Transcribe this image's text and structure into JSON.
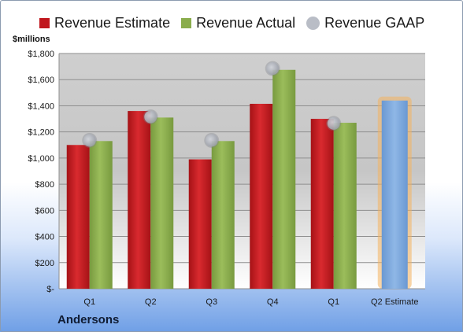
{
  "legend": {
    "estimate": "Revenue Estimate",
    "actual": "Revenue Actual",
    "gaap": "Revenue GAAP"
  },
  "units_label": "$millions",
  "company": "Andersons",
  "colors": {
    "estimate": "#c0171d",
    "actual": "#8aad4c",
    "gaap": "#b3b7c0",
    "forecast": "#7aa6dc",
    "forecast_glow": "#f4b25f"
  },
  "chart_data": {
    "type": "bar",
    "title": "",
    "xlabel": "",
    "ylabel": "$millions",
    "ylim": [
      0,
      1800
    ],
    "y_ticks": [
      0,
      200,
      400,
      600,
      800,
      1000,
      1200,
      1400,
      1600,
      1800
    ],
    "y_tick_labels": [
      "$-",
      "$200",
      "$400",
      "$600",
      "$800",
      "$1,000",
      "$1,200",
      "$1,400",
      "$1,600",
      "$1,800"
    ],
    "categories": [
      "Q1",
      "Q2",
      "Q3",
      "Q4",
      "Q1",
      "Q2 Estimate"
    ],
    "series": [
      {
        "name": "Revenue Estimate",
        "values": [
          1100,
          1360,
          990,
          1415,
          1300,
          null
        ]
      },
      {
        "name": "Revenue Actual",
        "values": [
          1130,
          1310,
          1130,
          1675,
          1270,
          null
        ]
      },
      {
        "name": "Revenue GAAP",
        "values": [
          1135,
          1315,
          1135,
          1685,
          1265,
          null
        ]
      }
    ],
    "forecast": {
      "category": "Q2 Estimate",
      "value": 1440
    },
    "grid": true,
    "legend_position": "top"
  }
}
